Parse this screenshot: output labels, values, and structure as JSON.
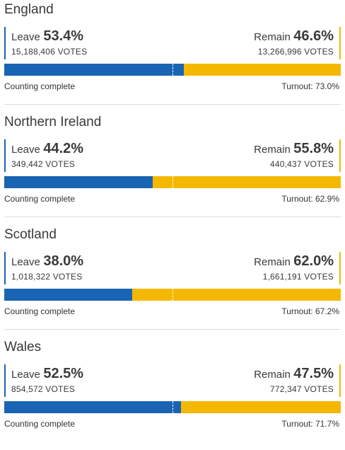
{
  "regions": [
    {
      "name": "England",
      "leave_label": "Leave",
      "leave_pct": "53.4%",
      "leave_votes": "15,188,406 VOTES",
      "remain_label": "Remain",
      "remain_pct": "46.6%",
      "remain_votes": "13,266,996 VOTES",
      "leave_share": 0.534,
      "status": "Counting complete",
      "turnout": "Turnout: 73.0%"
    },
    {
      "name": "Northern Ireland",
      "leave_label": "Leave",
      "leave_pct": "44.2%",
      "leave_votes": "349,442 VOTES",
      "remain_label": "Remain",
      "remain_pct": "55.8%",
      "remain_votes": "440,437 VOTES",
      "leave_share": 0.442,
      "status": "Counting complete",
      "turnout": "Turnout: 62.9%"
    },
    {
      "name": "Scotland",
      "leave_label": "Leave",
      "leave_pct": "38.0%",
      "leave_votes": "1,018,322 VOTES",
      "remain_label": "Remain",
      "remain_pct": "62.0%",
      "remain_votes": "1,661,191 VOTES",
      "leave_share": 0.38,
      "status": "Counting complete",
      "turnout": "Turnout: 67.2%"
    },
    {
      "name": "Wales",
      "leave_label": "Leave",
      "leave_pct": "52.5%",
      "leave_votes": "854,572 VOTES",
      "remain_label": "Remain",
      "remain_pct": "47.5%",
      "remain_votes": "772,347 VOTES",
      "leave_share": 0.525,
      "status": "Counting complete",
      "turnout": "Turnout: 71.7%"
    }
  ],
  "colors": {
    "leave": "#1a64b4",
    "remain": "#f5b800",
    "midline": "#ffffff"
  }
}
